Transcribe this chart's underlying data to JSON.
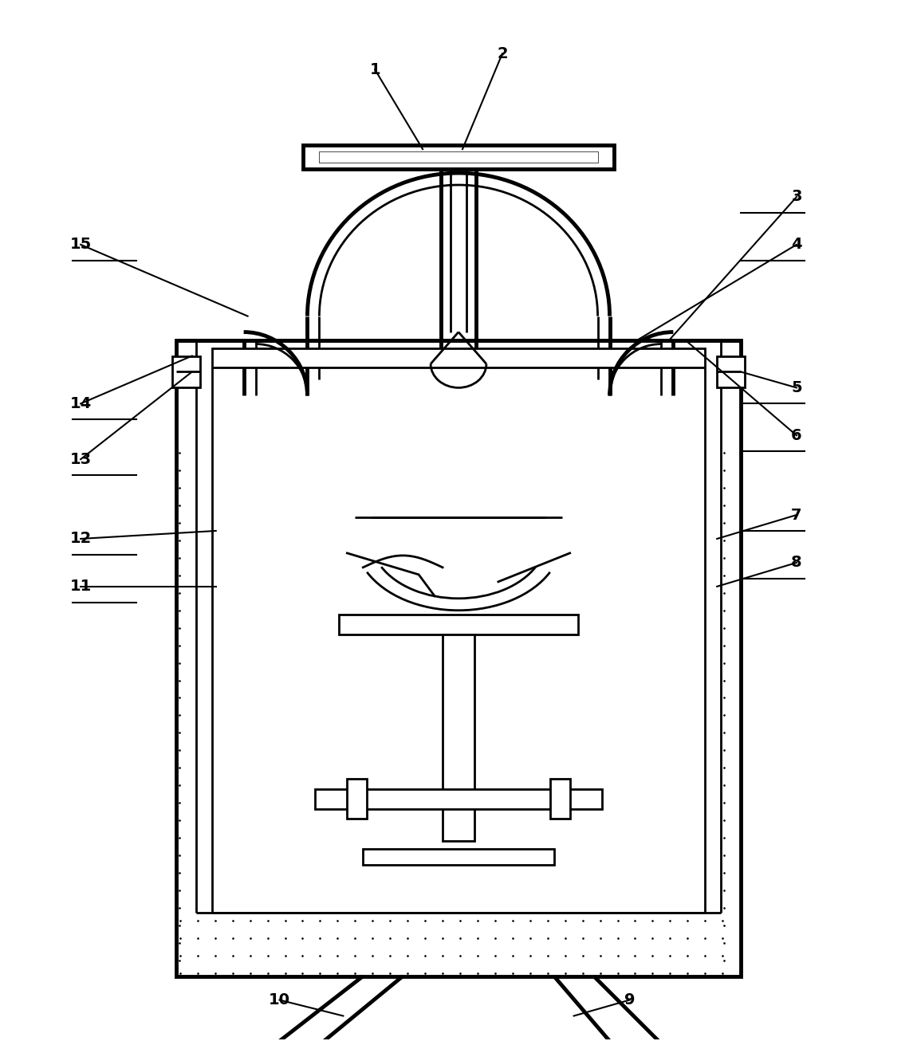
{
  "bg_color": "#ffffff",
  "line_color": "#000000",
  "lw": 2.0,
  "tlw": 3.5,
  "fig_w": 11.5,
  "fig_h": 13.06
}
